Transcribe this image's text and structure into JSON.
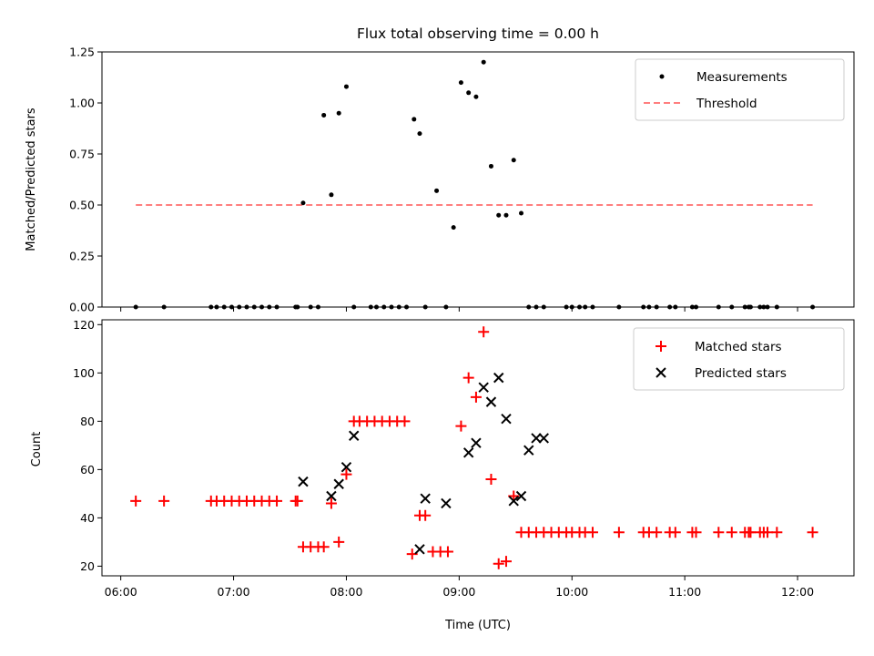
{
  "chart_data": [
    {
      "type": "scatter",
      "title": "Flux total observing time = 0.00 h",
      "xlabel": "",
      "ylabel": "Matched/Predicted stars",
      "xlim": [
        "05:50",
        "12:30"
      ],
      "ylim": [
        0,
        1.25
      ],
      "yticks": [
        "0.00",
        "0.25",
        "0.50",
        "0.75",
        "1.00",
        "1.25"
      ],
      "legend_position": "top-right",
      "grid": false,
      "series": [
        {
          "name": "Measurements",
          "marker": "dot",
          "color": "#000000",
          "x": [
            "06:08",
            "06:23",
            "06:48",
            "06:51",
            "06:55",
            "06:59",
            "07:03",
            "07:07",
            "07:11",
            "07:15",
            "07:19",
            "07:23",
            "07:33",
            "07:34",
            "07:37",
            "07:41",
            "07:45",
            "07:48",
            "07:52",
            "07:56",
            "08:00",
            "08:04",
            "08:13",
            "08:16",
            "08:20",
            "08:24",
            "08:28",
            "08:32",
            "08:36",
            "08:39",
            "08:42",
            "08:48",
            "08:53",
            "08:57",
            "09:01",
            "09:05",
            "09:09",
            "09:13",
            "09:17",
            "09:21",
            "09:25",
            "09:29",
            "09:33",
            "09:37",
            "09:41",
            "09:45",
            "09:57",
            "10:00",
            "10:04",
            "10:07",
            "10:11",
            "10:25",
            "10:38",
            "10:41",
            "10:45",
            "10:52",
            "10:55",
            "11:04",
            "11:06",
            "11:18",
            "11:25",
            "11:32",
            "11:34",
            "11:35",
            "11:40",
            "11:42",
            "11:44",
            "11:49",
            "12:08"
          ],
          "y": [
            0,
            0,
            0,
            0,
            0,
            0,
            0,
            0,
            0,
            0,
            0,
            0,
            0,
            0,
            0.51,
            0,
            0,
            0.94,
            0.55,
            0.95,
            1.08,
            0,
            0,
            0,
            0,
            0,
            0,
            0,
            0.92,
            0.85,
            0,
            0.57,
            0,
            0.39,
            1.1,
            1.05,
            1.03,
            1.2,
            0.69,
            0.45,
            0.45,
            0.72,
            0.46,
            0,
            0,
            0,
            0,
            0,
            0,
            0,
            0,
            0,
            0,
            0,
            0,
            0,
            0,
            0,
            0,
            0,
            0,
            0,
            0,
            0,
            0,
            0,
            0,
            0,
            0
          ]
        },
        {
          "name": "Threshold",
          "marker": "dashed-line",
          "color": "#ff7f7f",
          "x": [
            "06:08",
            "12:08"
          ],
          "y": [
            0.5,
            0.5
          ]
        }
      ]
    },
    {
      "type": "scatter",
      "title": "",
      "xlabel": "Time (UTC)",
      "ylabel": "Count",
      "xlim": [
        "05:50",
        "12:30"
      ],
      "ylim": [
        16,
        122
      ],
      "xticks": [
        "06:00",
        "07:00",
        "08:00",
        "09:00",
        "10:00",
        "11:00",
        "12:00"
      ],
      "yticks": [
        "20",
        "40",
        "60",
        "80",
        "100",
        "120"
      ],
      "legend_position": "top-right",
      "grid": false,
      "series": [
        {
          "name": "Matched stars",
          "marker": "plus",
          "color": "#ff0000",
          "x": [
            "06:08",
            "06:23",
            "06:48",
            "06:51",
            "06:55",
            "06:59",
            "07:03",
            "07:07",
            "07:11",
            "07:15",
            "07:19",
            "07:23",
            "07:33",
            "07:34",
            "07:37",
            "07:41",
            "07:45",
            "07:48",
            "07:52",
            "07:56",
            "08:00",
            "08:04",
            "08:07",
            "08:11",
            "08:15",
            "08:19",
            "08:23",
            "08:27",
            "08:31",
            "08:35",
            "08:39",
            "08:42",
            "08:46",
            "08:50",
            "08:54",
            "09:01",
            "09:05",
            "09:09",
            "09:13",
            "09:17",
            "09:21",
            "09:25",
            "09:29",
            "09:33",
            "09:37",
            "09:41",
            "09:45",
            "09:49",
            "09:53",
            "09:57",
            "10:00",
            "10:04",
            "10:07",
            "10:11",
            "10:25",
            "10:38",
            "10:41",
            "10:45",
            "10:52",
            "10:55",
            "11:04",
            "11:06",
            "11:18",
            "11:25",
            "11:32",
            "11:34",
            "11:35",
            "11:40",
            "11:42",
            "11:44",
            "11:49",
            "12:08"
          ],
          "y": [
            47,
            47,
            47,
            47,
            47,
            47,
            47,
            47,
            47,
            47,
            47,
            47,
            47,
            47,
            28,
            28,
            28,
            28,
            46,
            30,
            58,
            80,
            80,
            80,
            80,
            80,
            80,
            80,
            80,
            25,
            41,
            41,
            26,
            26,
            26,
            78,
            98,
            90,
            117,
            56,
            21,
            22,
            49,
            34,
            34,
            34,
            34,
            34,
            34,
            34,
            34,
            34,
            34,
            34,
            34,
            34,
            34,
            34,
            34,
            34,
            34,
            34,
            34,
            34,
            34,
            34,
            34,
            34,
            34,
            34,
            34,
            34
          ]
        },
        {
          "name": "Predicted stars",
          "marker": "x",
          "color": "#000000",
          "x": [
            "07:37",
            "07:52",
            "07:56",
            "08:00",
            "08:04",
            "08:39",
            "08:42",
            "08:53",
            "09:05",
            "09:09",
            "09:13",
            "09:17",
            "09:21",
            "09:25",
            "09:29",
            "09:33",
            "09:37",
            "09:41",
            "09:45"
          ],
          "y": [
            55,
            49,
            54,
            61,
            74,
            27,
            48,
            46,
            67,
            71,
            94,
            88,
            98,
            81,
            47,
            49,
            68,
            73,
            73
          ]
        }
      ]
    }
  ]
}
